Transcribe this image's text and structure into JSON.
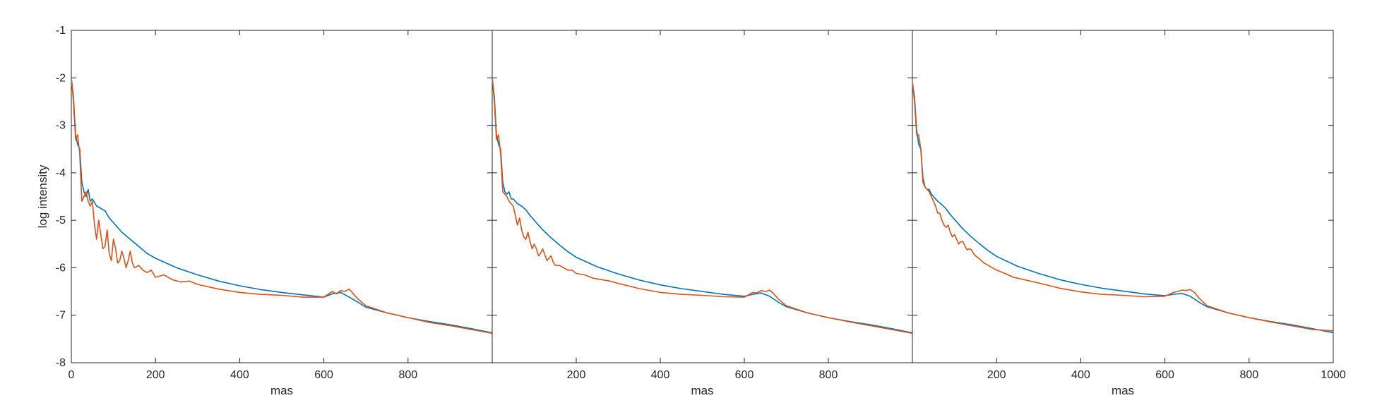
{
  "chart_data": [
    {
      "type": "line",
      "xlabel": "mas",
      "ylabel": "log intensity",
      "xlim": [
        0,
        1000
      ],
      "ylim": [
        -8,
        -1
      ],
      "xticks": [
        0,
        200,
        400,
        600,
        800
      ],
      "yticks": [
        -8,
        -7,
        -6,
        -5,
        -4,
        -3,
        -2,
        -1
      ],
      "grid": false,
      "series": [
        {
          "color": "#0072BD",
          "x": [
            0,
            5,
            10,
            15,
            20,
            25,
            30,
            35,
            40,
            45,
            50,
            60,
            70,
            80,
            90,
            100,
            120,
            140,
            160,
            180,
            200,
            250,
            300,
            350,
            400,
            450,
            500,
            550,
            600,
            620,
            640,
            660,
            680,
            700,
            750,
            800,
            850,
            900,
            950,
            1000
          ],
          "y": [
            -2.0,
            -2.4,
            -3.2,
            -3.4,
            -3.5,
            -4.2,
            -4.4,
            -4.5,
            -4.35,
            -4.6,
            -4.55,
            -4.7,
            -4.75,
            -4.8,
            -4.95,
            -5.05,
            -5.25,
            -5.4,
            -5.55,
            -5.7,
            -5.8,
            -6.0,
            -6.15,
            -6.28,
            -6.38,
            -6.46,
            -6.52,
            -6.57,
            -6.62,
            -6.55,
            -6.52,
            -6.62,
            -6.72,
            -6.83,
            -6.95,
            -7.05,
            -7.13,
            -7.2,
            -7.28,
            -7.37
          ]
        },
        {
          "color": "#D95319",
          "x": [
            0,
            5,
            10,
            15,
            20,
            25,
            30,
            35,
            40,
            45,
            50,
            55,
            60,
            65,
            70,
            75,
            80,
            85,
            90,
            95,
            100,
            105,
            110,
            115,
            120,
            125,
            130,
            135,
            140,
            145,
            150,
            160,
            170,
            180,
            190,
            200,
            220,
            240,
            260,
            280,
            300,
            350,
            400,
            450,
            500,
            550,
            600,
            620,
            630,
            640,
            650,
            660,
            670,
            680,
            700,
            750,
            800,
            850,
            900,
            950,
            1000
          ],
          "y": [
            -2.0,
            -2.5,
            -3.3,
            -3.2,
            -3.6,
            -4.6,
            -4.5,
            -4.4,
            -4.6,
            -4.7,
            -4.6,
            -5.1,
            -5.4,
            -5.0,
            -5.3,
            -5.6,
            -5.55,
            -5.2,
            -5.7,
            -5.85,
            -5.4,
            -5.6,
            -5.9,
            -5.85,
            -5.65,
            -5.8,
            -6.0,
            -5.85,
            -5.65,
            -5.9,
            -6.0,
            -5.95,
            -6.05,
            -6.1,
            -6.05,
            -6.2,
            -6.15,
            -6.25,
            -6.3,
            -6.28,
            -6.35,
            -6.45,
            -6.52,
            -6.56,
            -6.58,
            -6.62,
            -6.62,
            -6.5,
            -6.55,
            -6.48,
            -6.5,
            -6.45,
            -6.55,
            -6.65,
            -6.8,
            -6.95,
            -7.05,
            -7.15,
            -7.22,
            -7.3,
            -7.38
          ]
        }
      ]
    },
    {
      "type": "line",
      "xlabel": "mas",
      "xlim": [
        0,
        1000
      ],
      "ylim": [
        -8,
        -1
      ],
      "xticks": [
        200,
        400,
        600,
        800
      ],
      "grid": false,
      "series": [
        {
          "color": "#0072BD",
          "x": [
            0,
            5,
            10,
            15,
            20,
            25,
            30,
            35,
            40,
            45,
            50,
            60,
            70,
            80,
            90,
            100,
            120,
            140,
            160,
            180,
            200,
            250,
            300,
            350,
            400,
            450,
            500,
            550,
            600,
            620,
            640,
            660,
            680,
            700,
            750,
            800,
            850,
            900,
            950,
            1000
          ],
          "y": [
            -2.0,
            -2.4,
            -3.2,
            -3.4,
            -3.5,
            -4.2,
            -4.4,
            -4.45,
            -4.4,
            -4.55,
            -4.55,
            -4.65,
            -4.7,
            -4.78,
            -4.9,
            -5.0,
            -5.2,
            -5.37,
            -5.52,
            -5.66,
            -5.78,
            -5.98,
            -6.13,
            -6.26,
            -6.36,
            -6.44,
            -6.5,
            -6.56,
            -6.6,
            -6.56,
            -6.53,
            -6.6,
            -6.72,
            -6.82,
            -6.95,
            -7.05,
            -7.13,
            -7.2,
            -7.28,
            -7.37
          ]
        },
        {
          "color": "#D95319",
          "x": [
            0,
            5,
            10,
            15,
            20,
            25,
            30,
            35,
            40,
            45,
            50,
            55,
            60,
            65,
            70,
            75,
            80,
            85,
            90,
            95,
            100,
            105,
            110,
            115,
            120,
            125,
            130,
            135,
            140,
            145,
            150,
            160,
            170,
            180,
            190,
            200,
            220,
            240,
            260,
            280,
            300,
            350,
            400,
            450,
            500,
            550,
            600,
            620,
            630,
            640,
            650,
            660,
            670,
            680,
            700,
            750,
            800,
            850,
            900,
            950,
            1000
          ],
          "y": [
            -2.0,
            -2.5,
            -3.3,
            -3.2,
            -3.6,
            -4.4,
            -4.45,
            -4.5,
            -4.6,
            -4.65,
            -4.7,
            -4.9,
            -5.1,
            -4.95,
            -5.2,
            -5.35,
            -5.4,
            -5.25,
            -5.45,
            -5.6,
            -5.5,
            -5.6,
            -5.75,
            -5.7,
            -5.6,
            -5.72,
            -5.85,
            -5.8,
            -5.75,
            -5.88,
            -5.95,
            -5.95,
            -6.0,
            -6.05,
            -6.05,
            -6.12,
            -6.15,
            -6.22,
            -6.25,
            -6.28,
            -6.33,
            -6.44,
            -6.52,
            -6.56,
            -6.58,
            -6.61,
            -6.62,
            -6.52,
            -6.53,
            -6.48,
            -6.5,
            -6.47,
            -6.55,
            -6.65,
            -6.8,
            -6.95,
            -7.05,
            -7.14,
            -7.22,
            -7.3,
            -7.38
          ]
        }
      ]
    },
    {
      "type": "line",
      "xlabel": "mas",
      "xlim": [
        0,
        1000
      ],
      "ylim": [
        -8,
        -1
      ],
      "xticks": [
        200,
        400,
        600,
        800,
        1000
      ],
      "grid": false,
      "series": [
        {
          "color": "#0072BD",
          "x": [
            0,
            5,
            10,
            15,
            20,
            25,
            30,
            35,
            40,
            45,
            50,
            60,
            70,
            80,
            90,
            100,
            120,
            140,
            160,
            180,
            200,
            250,
            300,
            350,
            400,
            450,
            500,
            550,
            600,
            620,
            640,
            660,
            680,
            700,
            750,
            800,
            850,
            900,
            950,
            1000
          ],
          "y": [
            -2.1,
            -2.4,
            -3.1,
            -3.4,
            -3.5,
            -4.1,
            -4.3,
            -4.35,
            -4.35,
            -4.45,
            -4.5,
            -4.6,
            -4.67,
            -4.76,
            -4.88,
            -4.98,
            -5.18,
            -5.35,
            -5.5,
            -5.64,
            -5.76,
            -5.97,
            -6.12,
            -6.25,
            -6.35,
            -6.43,
            -6.49,
            -6.55,
            -6.59,
            -6.56,
            -6.54,
            -6.6,
            -6.72,
            -6.82,
            -6.95,
            -7.05,
            -7.13,
            -7.2,
            -7.28,
            -7.37
          ]
        },
        {
          "color": "#D95319",
          "x": [
            0,
            5,
            10,
            15,
            20,
            25,
            30,
            35,
            40,
            45,
            50,
            55,
            60,
            65,
            70,
            75,
            80,
            85,
            90,
            95,
            100,
            105,
            110,
            115,
            120,
            125,
            130,
            135,
            140,
            145,
            150,
            160,
            170,
            180,
            190,
            200,
            220,
            240,
            260,
            280,
            300,
            350,
            400,
            450,
            500,
            550,
            600,
            620,
            630,
            640,
            650,
            660,
            670,
            680,
            700,
            750,
            800,
            850,
            900,
            950,
            1000
          ],
          "y": [
            -2.1,
            -2.5,
            -3.2,
            -3.2,
            -3.5,
            -4.2,
            -4.3,
            -4.35,
            -4.4,
            -4.5,
            -4.6,
            -4.7,
            -4.85,
            -4.85,
            -5.0,
            -5.1,
            -5.15,
            -5.1,
            -5.25,
            -5.35,
            -5.3,
            -5.4,
            -5.5,
            -5.45,
            -5.45,
            -5.55,
            -5.62,
            -5.6,
            -5.62,
            -5.7,
            -5.75,
            -5.82,
            -5.9,
            -5.95,
            -6.0,
            -6.05,
            -6.12,
            -6.2,
            -6.24,
            -6.28,
            -6.32,
            -6.43,
            -6.51,
            -6.56,
            -6.58,
            -6.61,
            -6.6,
            -6.52,
            -6.5,
            -6.47,
            -6.48,
            -6.46,
            -6.52,
            -6.63,
            -6.8,
            -6.95,
            -7.05,
            -7.14,
            -7.22,
            -7.3,
            -7.33
          ]
        }
      ]
    }
  ]
}
